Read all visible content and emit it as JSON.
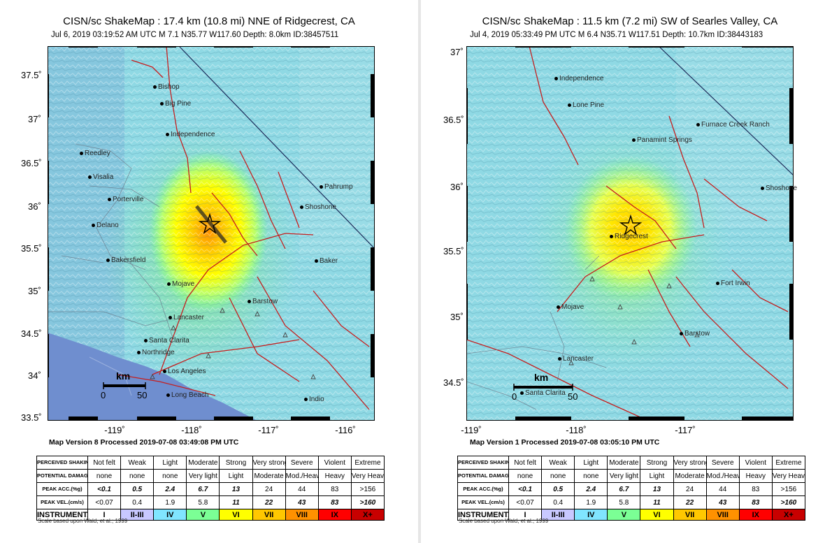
{
  "colors": {
    "mmi": [
      "#ffffff",
      "#c8c8ff",
      "#80e5ff",
      "#7bff95",
      "#ffff00",
      "#ffc800",
      "#ff9100",
      "#ff0000",
      "#c80000"
    ]
  },
  "left": {
    "title": "CISN/sc ShakeMap : 17.4 km (10.8 mi) NNE of Ridgecrest, CA",
    "subtitle": "Jul  6, 2019 03:19:52 AM UTC    M 7.1    N35.77 W117.60    Depth: 8.0km    ID:38457511",
    "lat_labels": [
      "37.5˚",
      "37˚",
      "36.5˚",
      "36˚",
      "35.5˚",
      "35˚",
      "34.5˚",
      "34˚",
      "33.5˚"
    ],
    "lon_labels": [
      "-119˚",
      "-118˚",
      "-117˚",
      "-116˚"
    ],
    "places": [
      "Bishop",
      "Big Pine",
      "Independence",
      "Reedley",
      "Visalia",
      "Porterville",
      "Delano",
      "Bakersfield",
      "Mojave",
      "Lancaster",
      "Santa Clarita",
      "Northridge",
      "Los Angeles",
      "Long Beach",
      "Pahrump",
      "Shoshone",
      "Baker",
      "Barstow",
      "Indio"
    ],
    "scale": {
      "unit": "km",
      "start": "0",
      "end": "50"
    },
    "version": "Map Version 8 Processed 2019-07-08 03:49:08 PM UTC"
  },
  "right": {
    "title": "CISN/sc ShakeMap : 11.5 km (7.2 mi) SW of Searles Valley, CA",
    "subtitle": "Jul  4, 2019 05:33:49 PM UTC    M 6.4    N35.71 W117.51    Depth: 10.7km    ID:38443183",
    "lat_labels": [
      "37˚",
      "36.5˚",
      "36˚",
      "35.5˚",
      "35˚",
      "34.5˚"
    ],
    "lon_labels": [
      "-119˚",
      "-118˚",
      "-117˚"
    ],
    "places": [
      "Independence",
      "Lone Pine",
      "Furnace Creek Ranch",
      "Panamint Springs",
      "Shoshone",
      "Ridgecrest",
      "Fort Irwin",
      "Mojave",
      "Barstow",
      "Lancaster",
      "Santa Clarita"
    ],
    "scale": {
      "unit": "km",
      "start": "0",
      "end": "50"
    },
    "version": "Map Version 1 Processed 2019-07-08 03:05:10 PM UTC"
  },
  "legend": {
    "row_heads": [
      "PERCEIVED SHAKING",
      "POTENTIAL DAMAGE",
      "PEAK ACC.(%g)",
      "PEAK VEL.(cm/s)",
      "INSTRUMENTAL INTENSITY"
    ],
    "shaking": [
      "Not felt",
      "Weak",
      "Light",
      "Moderate",
      "Strong",
      "Very strong",
      "Severe",
      "Violent",
      "Extreme"
    ],
    "damage": [
      "none",
      "none",
      "none",
      "Very light",
      "Light",
      "Moderate",
      "Mod./Heavy",
      "Heavy",
      "Very Heavy"
    ],
    "acc": [
      "<0.1",
      "0.5",
      "2.4",
      "6.7",
      "13",
      "24",
      "44",
      "83",
      ">156"
    ],
    "vel": [
      "<0.07",
      "0.4",
      "1.9",
      "5.8",
      "11",
      "22",
      "43",
      "83",
      ">160"
    ],
    "intensity": [
      "I",
      "II-III",
      "IV",
      "V",
      "VI",
      "VII",
      "VIII",
      "IX",
      "X+"
    ],
    "credit": "Scale based upon Wald, et al.; 1999"
  }
}
